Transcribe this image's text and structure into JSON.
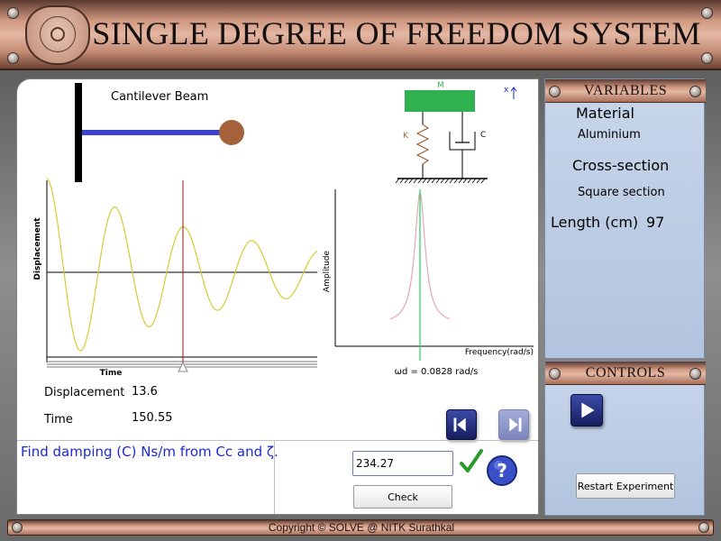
{
  "header": {
    "title": "SINGLE DEGREE OF FREEDOM SYSTEM",
    "logo_icon": "institute-logo-icon"
  },
  "beam_diagram": {
    "label": "Cantilever Beam"
  },
  "sdof_diagram": {
    "mass_label": "M",
    "spring_label": "K",
    "damper_label": "C",
    "displacement_label": "x",
    "mass_color": "#2fb14f",
    "spring_color": "#a4613a"
  },
  "time_plot": {
    "ylabel": "Displacement",
    "xlabel": "Time",
    "line_color": "#d4cc30",
    "cursor_color": "#a01010"
  },
  "freq_plot": {
    "ylabel": "Amplitude",
    "xlabel": "Frequency(rad/s)",
    "curve_color": "#e2a8b0",
    "marker_color": "#20d060",
    "omega_label": "ωd = 0.0828 rad/s"
  },
  "readouts": {
    "displacement_label": "Displacement",
    "displacement_value": "13.6",
    "time_label": "Time",
    "time_value": "150.55"
  },
  "question": {
    "prompt": "Find damping (C) Ns/m from Cc and ζ.",
    "answer_value": "234.27",
    "check_label": "Check",
    "correct_icon": "checkmark-icon",
    "help_icon": "help-icon"
  },
  "navigation": {
    "prev_icon": "step-back-icon",
    "next_icon": "step-forward-icon"
  },
  "variables_panel": {
    "title": "VARIABLES",
    "material_label": "Material",
    "material_value": "Aluminium",
    "cross_section_label": "Cross-section",
    "cross_section_value": "Square section",
    "length_label": "Length (cm)",
    "length_value": "97"
  },
  "controls_panel": {
    "title": "CONTROLS",
    "play_icon": "play-icon",
    "restart_label": "Restart Experiment"
  },
  "footer": {
    "copyright": "Copyright © SOLVE @ NITK Surathkal"
  },
  "chart_data": [
    {
      "type": "line",
      "title": "",
      "xlabel": "Time",
      "ylabel": "Displacement",
      "description": "decaying oscillation (free damped vibration response)",
      "cursor_time": 150.55,
      "cursor_displacement": 13.6
    },
    {
      "type": "line",
      "title": "",
      "xlabel": "Frequency(rad/s)",
      "ylabel": "Amplitude",
      "description": "resonance peak",
      "peak_frequency": 0.0828
    }
  ]
}
